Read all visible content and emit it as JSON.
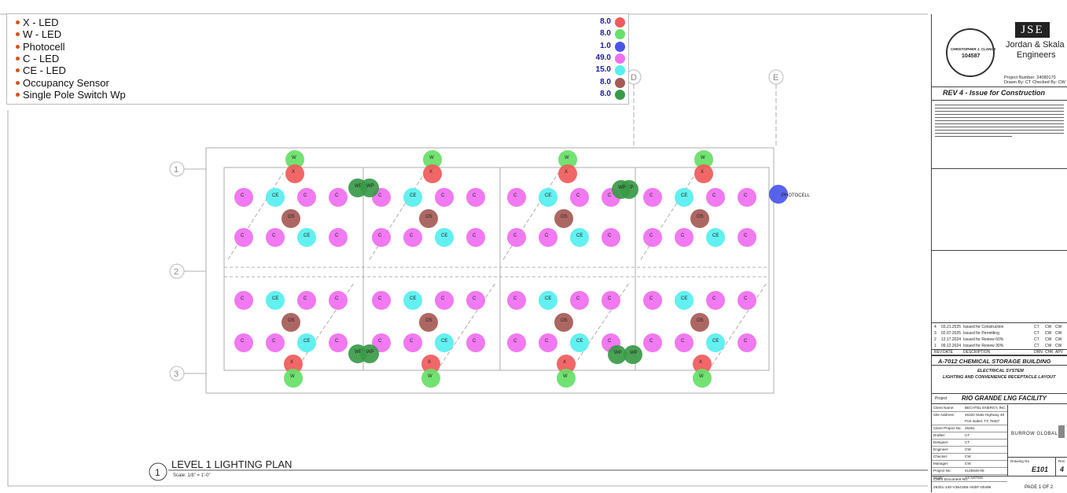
{
  "legend": {
    "items": [
      {
        "label": "X - LED",
        "count": "8.0",
        "color": "#f05a5a"
      },
      {
        "label": "W - LED",
        "count": "8.0",
        "color": "#66e066"
      },
      {
        "label": "Photocell",
        "count": "1.0",
        "color": "#4a55e8"
      },
      {
        "label": "C - LED",
        "count": "49.0",
        "color": "#f06ef0"
      },
      {
        "label": "CE - LED",
        "count": "15.0",
        "color": "#55efef"
      },
      {
        "label": "Occupancy Sensor",
        "count": "8.0",
        "color": "#a65a55"
      },
      {
        "label": "Single Pole Switch Wp",
        "count": "8.0",
        "color": "#3a9a48"
      }
    ]
  },
  "grid": {
    "columns": [
      "D",
      "E"
    ],
    "rows": [
      "1",
      "2",
      "3"
    ]
  },
  "plan": {
    "title": "LEVEL 1 LIGHTING PLAN",
    "scale": "Scale:  1/8\" = 1'-0\"",
    "number": "1",
    "photocell_label": "PHOTOCELL"
  },
  "fixture_labels": {
    "c": "C",
    "ce": "CE",
    "w": "W",
    "x": "X",
    "os": "OS",
    "wp": "WP"
  },
  "title_block": {
    "firm_name": "Jordan & Skala",
    "firm_sub": "Engineers",
    "firm_logo": "JSE",
    "project_number": "Project Number: 24080170",
    "drawn_by": "Drawn By: CT",
    "checked_by": "Checked By: CW",
    "seal_name": "CHRISTOPHER J. CLANCY",
    "seal_number": "104587",
    "revision_banner": "REV 4 - Issue for Construction",
    "revisions": [
      {
        "rev": "4",
        "date": "03.21.2025",
        "desc": "Issued for Construction",
        "drn": "CT",
        "chk": "CW",
        "apv": "CW"
      },
      {
        "rev": "3",
        "date": "02.07.2025",
        "desc": "Issued for Permitting",
        "drn": "CT",
        "chk": "CW",
        "apv": "CW"
      },
      {
        "rev": "2",
        "date": "12.17.2024",
        "desc": "Issued for Review 60%",
        "drn": "CT",
        "chk": "CW",
        "apv": "CW"
      },
      {
        "rev": "1",
        "date": "09.12.2024",
        "desc": "Issued for Review 30%",
        "drn": "CT",
        "chk": "CW",
        "apv": "CW"
      }
    ],
    "rev_headers": [
      "REV",
      "DATE",
      "DESCRIPTION",
      "DRN",
      "CHK",
      "APV"
    ],
    "building": "A-7012 CHEMICAL STORAGE BUILDING",
    "system": "ELECTRICAL SYSTEM",
    "layout": "LIGHTING AND CONVENIENCE RECEPTACLE LAYOUT",
    "project_label": "Project",
    "project_name": "RIO GRANDE LNG FACILITY",
    "fields": [
      {
        "k": "Client Name:",
        "v": "BECHTEL ENERGY, INC."
      },
      {
        "k": "Site Address:",
        "v": "46320 State Highway 48"
      },
      {
        "k": "",
        "v": "Port Isabel, TX 78467"
      },
      {
        "k": "Client Project No:",
        "v": "26251"
      },
      {
        "k": "Drafter:",
        "v": "CT"
      },
      {
        "k": "Designer:",
        "v": "CT"
      },
      {
        "k": "Engineer:",
        "v": "CW"
      },
      {
        "k": "Checker:",
        "v": "CW"
      },
      {
        "k": "Manager:",
        "v": "CW"
      },
      {
        "k": "Project No:",
        "v": "4125646-08"
      },
      {
        "k": "Scale:",
        "v": "AS NOTED"
      }
    ],
    "burrow": "BURROW GLOBAL",
    "drawing_no_label": "Drawing No",
    "drawing_no": "E101",
    "rev_label": "Rev",
    "rev_no": "4",
    "client_doc_label": "Client Document No.",
    "client_doc": "26251-140-V3541B6-AKBF-00496",
    "page": "PAGE 1  OF 2"
  }
}
